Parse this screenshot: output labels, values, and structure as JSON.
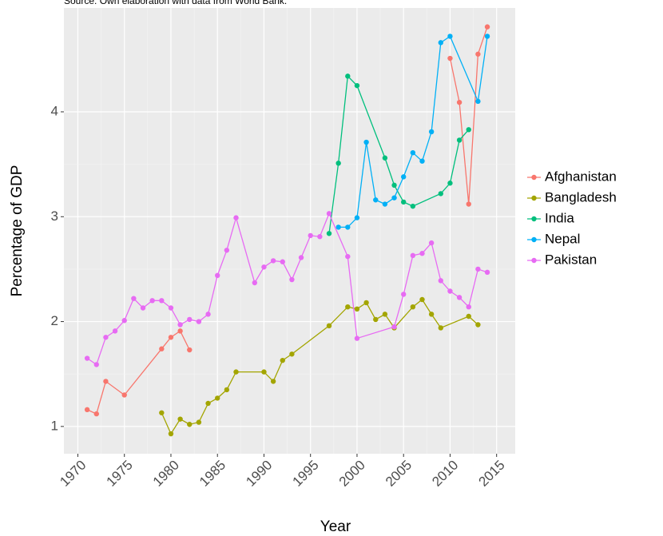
{
  "chart_data": {
    "type": "line",
    "subtitle": "Source: Own elaboration with data from World Bank.",
    "xlabel": "Year",
    "ylabel": "Percentage of GDP",
    "xlim": [
      1968.5,
      2017
    ],
    "xticks": [
      1970,
      1975,
      1980,
      1985,
      1990,
      1995,
      2000,
      2005,
      2010,
      2015
    ],
    "ylim": [
      0.74,
      4.99
    ],
    "yticks": [
      1,
      2,
      3,
      4
    ],
    "grid": true,
    "legend": "right",
    "series": [
      {
        "name": "Afghanistan",
        "color": "#F8766D",
        "x": [
          1971,
          1972,
          1973,
          1975,
          1979,
          1980,
          1981,
          1982,
          1983,
          2010,
          2011,
          2012,
          2013,
          2014
        ],
        "values": [
          1.16,
          1.12,
          1.43,
          1.3,
          1.74,
          1.85,
          1.91,
          1.73,
          null,
          4.51,
          4.09,
          3.12,
          4.55,
          4.81
        ]
      },
      {
        "name": "Bangladesh",
        "color": "#A3A500",
        "x": [
          1979,
          1980,
          1981,
          1982,
          1983,
          1984,
          1985,
          1986,
          1987,
          1990,
          1991,
          1992,
          1993,
          1997,
          1999,
          2000,
          2001,
          2002,
          2003,
          2004,
          2006,
          2007,
          2008,
          2009,
          2012,
          2013
        ],
        "values": [
          1.13,
          0.93,
          1.07,
          1.02,
          1.04,
          1.22,
          1.27,
          1.35,
          1.52,
          1.52,
          1.43,
          1.63,
          1.69,
          1.96,
          2.14,
          2.12,
          2.18,
          2.02,
          2.07,
          1.94,
          2.14,
          2.21,
          2.07,
          1.94,
          2.05,
          1.97
        ]
      },
      {
        "name": "India",
        "color": "#00BF7D",
        "x": [
          1997,
          1998,
          1999,
          2000,
          2003,
          2004,
          2005,
          2006,
          2009,
          2010,
          2011,
          2012
        ],
        "values": [
          2.84,
          3.51,
          4.34,
          4.25,
          3.56,
          3.3,
          3.14,
          3.1,
          3.22,
          3.32,
          3.73,
          3.83
        ]
      },
      {
        "name": "Nepal",
        "color": "#00B0F6",
        "x": [
          1998,
          1999,
          2000,
          2001,
          2002,
          2003,
          2004,
          2005,
          2006,
          2007,
          2008,
          2009,
          2010,
          2013,
          2014
        ],
        "values": [
          2.9,
          2.9,
          2.99,
          3.71,
          3.16,
          3.12,
          3.18,
          3.38,
          3.61,
          3.53,
          3.81,
          4.66,
          4.72,
          4.1,
          4.72
        ]
      },
      {
        "name": "Pakistan",
        "color": "#E76BF3",
        "x": [
          1971,
          1972,
          1973,
          1974,
          1975,
          1976,
          1977,
          1978,
          1979,
          1980,
          1981,
          1982,
          1983,
          1984,
          1985,
          1986,
          1987,
          1989,
          1990,
          1991,
          1992,
          1993,
          1994,
          1995,
          1996,
          1997,
          1999,
          2000,
          2004,
          2005,
          2006,
          2007,
          2008,
          2009,
          2010,
          2011,
          2012,
          2013,
          2014
        ],
        "values": [
          1.65,
          1.59,
          1.85,
          1.91,
          2.01,
          2.22,
          2.13,
          2.2,
          2.2,
          2.13,
          1.97,
          2.02,
          2.0,
          2.07,
          2.44,
          2.68,
          2.99,
          2.37,
          2.52,
          2.58,
          2.57,
          2.4,
          2.61,
          2.82,
          2.81,
          3.03,
          2.62,
          1.84,
          1.95,
          2.26,
          2.63,
          2.65,
          2.75,
          2.39,
          2.29,
          2.23,
          2.14,
          2.5,
          2.47
        ]
      }
    ]
  }
}
